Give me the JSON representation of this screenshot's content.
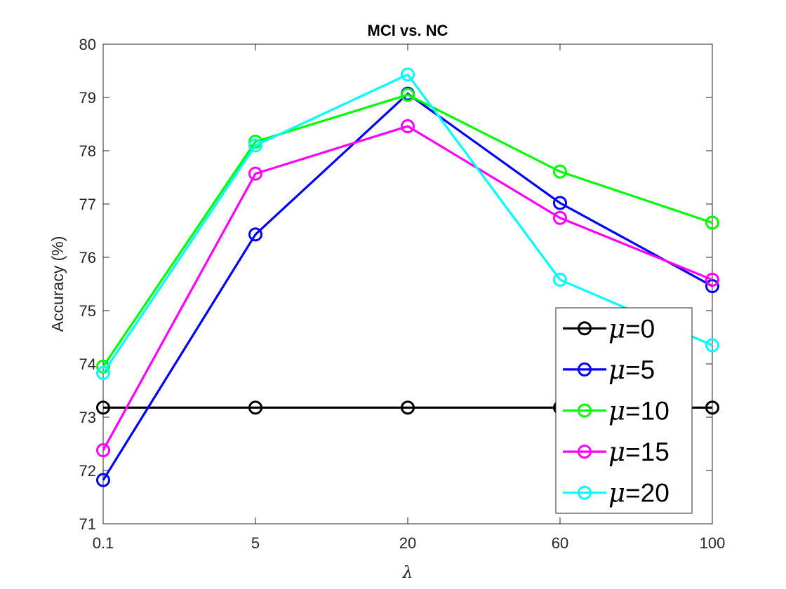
{
  "chart_data": {
    "type": "line",
    "title": "MCI vs. NC",
    "xlabel": "λ",
    "ylabel": "Accuracy (%)",
    "categories": [
      "0.1",
      "5",
      "20",
      "60",
      "100"
    ],
    "ylim": [
      71,
      80
    ],
    "yticks": [
      "71",
      "72",
      "73",
      "74",
      "75",
      "76",
      "77",
      "78",
      "79",
      "80"
    ],
    "legend_position": "bottom-right",
    "legend_symbol": "μ",
    "series": [
      {
        "name": "μ=0",
        "symbol": "μ",
        "value_label": "=0",
        "color": "#000000",
        "values": [
          73.18,
          73.18,
          73.18,
          73.18,
          73.18
        ]
      },
      {
        "name": "μ=5",
        "symbol": "μ",
        "value_label": "=5",
        "color": "#0000ff",
        "values": [
          71.82,
          76.43,
          79.07,
          77.02,
          75.46
        ]
      },
      {
        "name": "μ=10",
        "symbol": "μ",
        "value_label": "=10",
        "color": "#00ff00",
        "values": [
          73.95,
          78.17,
          79.05,
          77.61,
          76.65
        ]
      },
      {
        "name": "μ=15",
        "symbol": "μ",
        "value_label": "=15",
        "color": "#ff00ff",
        "values": [
          72.38,
          77.57,
          78.46,
          76.74,
          75.58
        ]
      },
      {
        "name": "μ=20",
        "symbol": "μ",
        "value_label": "=20",
        "color": "#00ffff",
        "values": [
          73.83,
          78.1,
          79.43,
          75.58,
          74.35
        ]
      }
    ]
  }
}
